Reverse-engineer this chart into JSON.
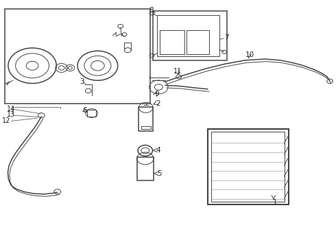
{
  "bg_color": "#ffffff",
  "line_color": "#444444",
  "label_color": "#222222",
  "fig_width": 4.9,
  "fig_height": 3.6,
  "dpi": 100
}
